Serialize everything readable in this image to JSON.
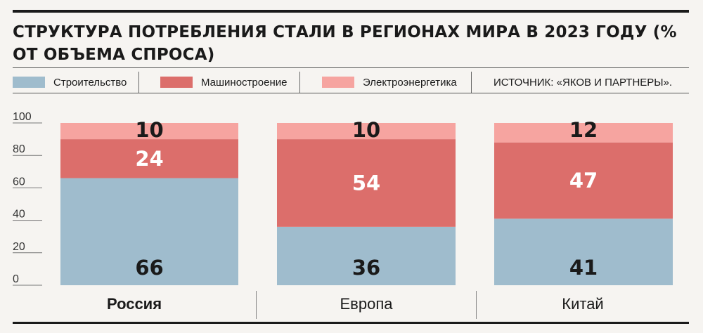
{
  "chart_data": {
    "type": "bar",
    "stacked": true,
    "title": "СТРУКТУРА ПОТРЕБЛЕНИЯ СТАЛИ В РЕГИОНАХ МИРА В 2023 ГОДУ (% ОТ ОБЪЕМА СПРОСА)",
    "source": "ИСТОЧНИК: «ЯКОВ И ПАРТНЕРЫ».",
    "categories": [
      "Россия",
      "Европа",
      "Китай"
    ],
    "series": [
      {
        "name": "Строительство",
        "values": [
          66,
          36,
          41
        ],
        "color": "#9fbccd"
      },
      {
        "name": "Машиностроение",
        "values": [
          24,
          54,
          47
        ],
        "color": "#dc6e6b"
      },
      {
        "name": "Электроэнергетика",
        "values": [
          10,
          10,
          12
        ],
        "color": "#f6a4a0"
      }
    ],
    "yticks": [
      0,
      20,
      40,
      60,
      80,
      100
    ],
    "ylim": [
      0,
      100
    ],
    "grid": false,
    "legend": "top",
    "highlighted_category": "Россия"
  }
}
